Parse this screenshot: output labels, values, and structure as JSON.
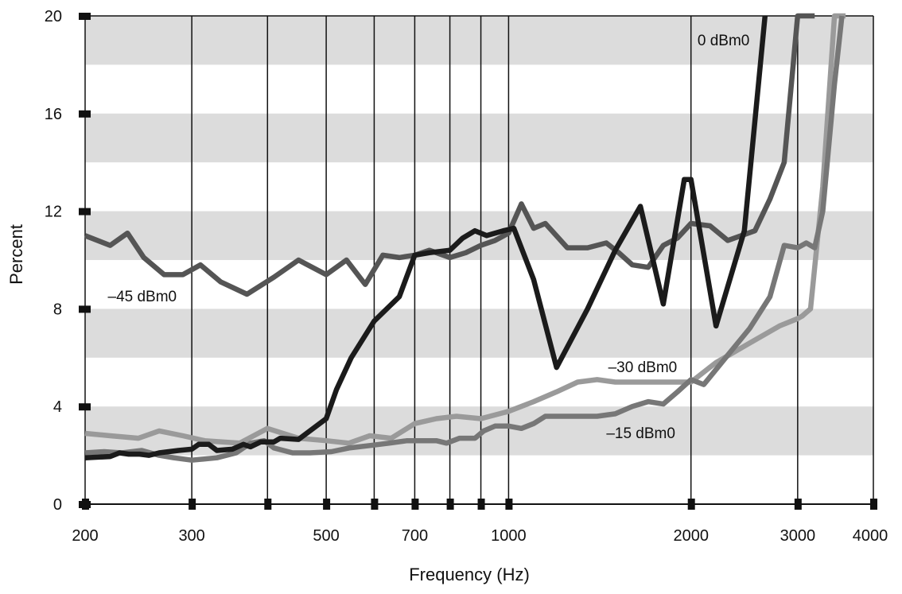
{
  "chart_data": {
    "type": "line",
    "xlabel": "Frequency (Hz)",
    "ylabel": "Percent",
    "x_scale": "log",
    "xlim": [
      200,
      4000
    ],
    "ylim": [
      0,
      20
    ],
    "x_ticks": [
      200,
      300,
      400,
      500,
      600,
      700,
      800,
      900,
      1000,
      2000,
      3000,
      4000
    ],
    "x_tick_labels": [
      {
        "value": 200,
        "label": "200"
      },
      {
        "value": 300,
        "label": "300"
      },
      {
        "value": 500,
        "label": "500"
      },
      {
        "value": 700,
        "label": "700"
      },
      {
        "value": 1000,
        "label": "1000"
      },
      {
        "value": 2000,
        "label": "2000"
      },
      {
        "value": 3000,
        "label": "3000"
      },
      {
        "value": 4000,
        "label": "4000"
      }
    ],
    "y_ticks": [
      0,
      4,
      8,
      12,
      16,
      20
    ],
    "y_tick_labels": [
      "0",
      "4",
      "8",
      "12",
      "16",
      "20"
    ],
    "bands": [
      [
        2,
        4
      ],
      [
        6,
        8
      ],
      [
        10,
        12
      ],
      [
        14,
        16
      ],
      [
        18,
        20
      ]
    ],
    "grid": "vertical lines at x ticks, horizontal gray bands",
    "colors": {
      "band": "#dcdcdc",
      "axis": "#111111",
      "grid": "#111111"
    },
    "series": [
      {
        "name": "0 dBm0",
        "color": "#1b1b1b",
        "label_x": 2050,
        "label_y": 18.8,
        "x": [
          200,
          220,
          228,
          236,
          246,
          255,
          265,
          285,
          300,
          308,
          320,
          330,
          350,
          365,
          375,
          390,
          410,
          420,
          450,
          500,
          520,
          550,
          600,
          660,
          700,
          740,
          800,
          840,
          880,
          920,
          980,
          1020,
          1100,
          1200,
          1350,
          1500,
          1650,
          1800,
          1950,
          2000,
          2200,
          2450,
          2650
        ],
        "y": [
          1.9,
          1.95,
          2.1,
          2.05,
          2.05,
          2.0,
          2.1,
          2.2,
          2.25,
          2.45,
          2.45,
          2.2,
          2.25,
          2.45,
          2.35,
          2.55,
          2.55,
          2.7,
          2.65,
          3.5,
          4.7,
          6.0,
          7.5,
          8.5,
          10.2,
          10.3,
          10.4,
          10.9,
          11.2,
          11.0,
          11.2,
          11.3,
          9.2,
          5.6,
          8.0,
          10.4,
          12.2,
          8.2,
          13.3,
          13.3,
          7.3,
          11.2,
          20.0
        ]
      },
      {
        "name": "–45 dBm0",
        "color": "#555555",
        "label_x": 218,
        "label_y": 8.3,
        "x": [
          200,
          220,
          235,
          250,
          270,
          290,
          310,
          335,
          370,
          410,
          450,
          500,
          540,
          580,
          620,
          660,
          700,
          740,
          800,
          850,
          900,
          950,
          1000,
          1050,
          1100,
          1150,
          1250,
          1350,
          1450,
          1520,
          1600,
          1700,
          1800,
          1900,
          2000,
          2150,
          2300,
          2550,
          2700,
          2850,
          3000,
          3150,
          3200,
          3200
        ],
        "y": [
          11.0,
          10.6,
          11.1,
          10.1,
          9.4,
          9.4,
          9.8,
          9.1,
          8.6,
          9.3,
          10.0,
          9.4,
          10.0,
          9.0,
          10.2,
          10.1,
          10.2,
          10.4,
          10.1,
          10.3,
          10.6,
          10.8,
          11.1,
          12.3,
          11.3,
          11.5,
          10.5,
          10.5,
          10.7,
          10.3,
          9.8,
          9.7,
          10.6,
          10.9,
          11.5,
          11.4,
          10.8,
          11.2,
          12.5,
          14.0,
          20.0,
          20.0,
          20.0,
          20.0
        ]
      },
      {
        "name": "–30 dBm0",
        "color": "#9a9a9a",
        "label_x": 1460,
        "label_y": 5.4,
        "x": [
          200,
          220,
          245,
          265,
          290,
          315,
          360,
          400,
          450,
          500,
          545,
          590,
          640,
          700,
          760,
          820,
          900,
          1000,
          1100,
          1200,
          1300,
          1400,
          1500,
          1750,
          2000,
          2200,
          2500,
          2800,
          3000,
          3050,
          3150,
          3300,
          3450,
          3550,
          3600
        ],
        "y": [
          2.9,
          2.8,
          2.7,
          3.0,
          2.8,
          2.6,
          2.5,
          3.1,
          2.7,
          2.6,
          2.5,
          2.8,
          2.7,
          3.3,
          3.5,
          3.6,
          3.5,
          3.8,
          4.2,
          4.6,
          5.0,
          5.1,
          5.0,
          5.0,
          5.0,
          5.8,
          6.6,
          7.3,
          7.6,
          7.7,
          8.0,
          13.0,
          20.0,
          20.0,
          20.0
        ]
      },
      {
        "name": "–15 dBm0",
        "color": "#777777",
        "label_x": 1450,
        "label_y": 2.7,
        "x": [
          200,
          215,
          230,
          248,
          265,
          280,
          300,
          330,
          355,
          375,
          395,
          410,
          440,
          470,
          510,
          545,
          590,
          635,
          680,
          720,
          760,
          790,
          830,
          880,
          910,
          950,
          1000,
          1050,
          1100,
          1150,
          1200,
          1300,
          1400,
          1500,
          1600,
          1700,
          1800,
          1900,
          2000,
          2100,
          2300,
          2500,
          2700,
          2850,
          3000,
          3100,
          3200,
          3300,
          3450,
          3550
        ],
        "y": [
          2.1,
          2.15,
          2.1,
          2.2,
          2.0,
          1.9,
          1.8,
          1.9,
          2.1,
          2.5,
          2.6,
          2.3,
          2.1,
          2.1,
          2.15,
          2.3,
          2.4,
          2.5,
          2.6,
          2.6,
          2.6,
          2.5,
          2.7,
          2.7,
          3.0,
          3.2,
          3.2,
          3.1,
          3.3,
          3.6,
          3.6,
          3.6,
          3.6,
          3.7,
          4.0,
          4.2,
          4.1,
          4.6,
          5.1,
          4.9,
          6.1,
          7.2,
          8.5,
          10.6,
          10.5,
          10.7,
          10.5,
          12.0,
          17.2,
          20.0
        ]
      }
    ]
  }
}
